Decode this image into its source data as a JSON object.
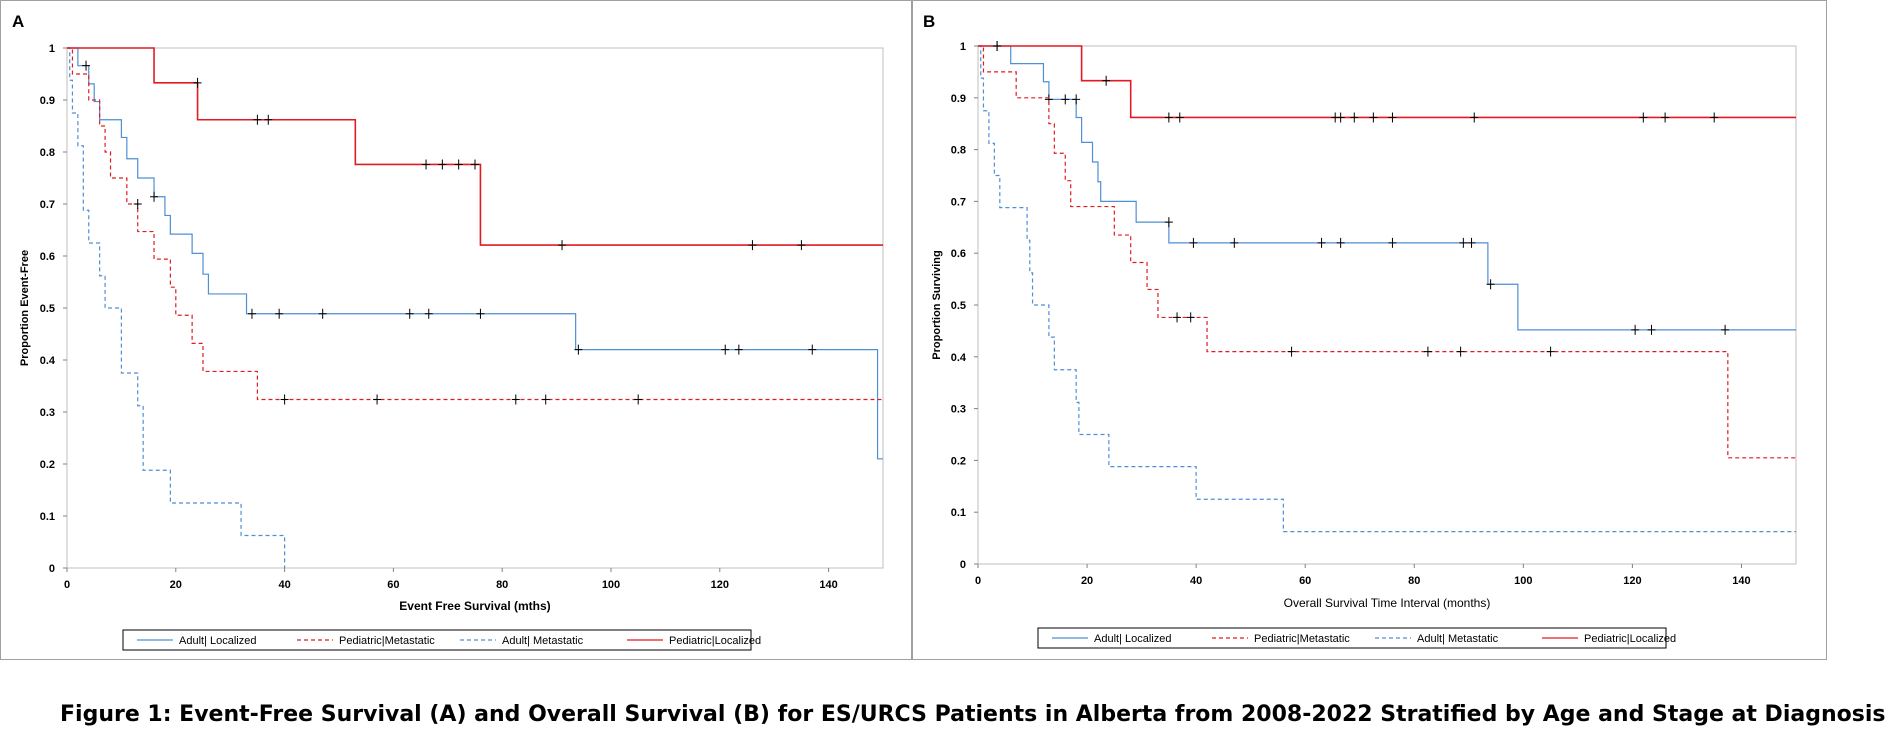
{
  "caption": "Figure 1: Event-Free Survival (A) and Overall Survival (B) for ES/URCS Patients in Alberta from 2008-2022 Stratified by Age and Stage at Diagnosis",
  "colors": {
    "blue": "#4f8fd4",
    "red": "#e11b22",
    "frame": "#a0a0a0"
  },
  "chart_data": [
    {
      "type": "line",
      "panel_label": "A",
      "xlabel": "Event Free Survival (mths)",
      "ylabel": "Proportion Event-Free",
      "xlim": [
        0,
        150
      ],
      "ylim": [
        0,
        1
      ],
      "x_ticks": [
        0,
        20,
        40,
        60,
        80,
        100,
        120,
        140
      ],
      "y_ticks": [
        0,
        0.1,
        0.2,
        0.3,
        0.4,
        0.5,
        0.6,
        0.7,
        0.8,
        0.9,
        1
      ],
      "legend_position": "bottom",
      "series": [
        {
          "name": "Adult| Localized",
          "color": "#4f8fd4",
          "dash": "solid",
          "steps": [
            [
              0,
              1
            ],
            [
              2,
              0.966
            ],
            [
              4,
              0.931
            ],
            [
              5,
              0.897
            ],
            [
              6,
              0.862
            ],
            [
              10,
              0.828
            ],
            [
              11,
              0.787
            ],
            [
              13,
              0.75
            ],
            [
              16,
              0.714
            ],
            [
              18,
              0.678
            ],
            [
              19,
              0.642
            ],
            [
              23,
              0.605
            ],
            [
              25,
              0.565
            ],
            [
              26,
              0.527
            ],
            [
              33,
              0.489
            ],
            [
              93.5,
              0.42
            ],
            [
              149,
              0.21
            ]
          ],
          "censors": [
            [
              3.5,
              0.966
            ],
            [
              16,
              0.714
            ],
            [
              34,
              0.489
            ],
            [
              39,
              0.489
            ],
            [
              47,
              0.489
            ],
            [
              63,
              0.489
            ],
            [
              66.5,
              0.489
            ],
            [
              76,
              0.489
            ],
            [
              94,
              0.42
            ],
            [
              121,
              0.42
            ],
            [
              123.5,
              0.42
            ],
            [
              137,
              0.42
            ]
          ],
          "end_x": 150
        },
        {
          "name": "Pediatric|Metastatic",
          "color": "#e11b22",
          "dash": "dashed",
          "steps": [
            [
              0,
              1
            ],
            [
              1,
              0.95
            ],
            [
              4,
              0.9
            ],
            [
              6,
              0.85
            ],
            [
              7,
              0.8
            ],
            [
              8,
              0.75
            ],
            [
              11,
              0.7
            ],
            [
              13,
              0.647
            ],
            [
              16,
              0.594
            ],
            [
              19,
              0.54
            ],
            [
              20,
              0.486
            ],
            [
              23,
              0.432
            ],
            [
              25,
              0.378
            ],
            [
              35,
              0.324
            ]
          ],
          "censors": [
            [
              13,
              0.7
            ],
            [
              40,
              0.324
            ],
            [
              57,
              0.324
            ],
            [
              82.5,
              0.324
            ],
            [
              88,
              0.324
            ],
            [
              105,
              0.324
            ]
          ],
          "end_x": 150
        },
        {
          "name": "Adult| Metastatic",
          "color": "#4f8fd4",
          "dash": "dashed",
          "steps": [
            [
              0,
              1
            ],
            [
              0.5,
              0.938
            ],
            [
              1,
              0.875
            ],
            [
              2,
              0.812
            ],
            [
              3,
              0.688
            ],
            [
              4,
              0.625
            ],
            [
              6,
              0.562
            ],
            [
              7,
              0.5
            ],
            [
              10,
              0.375
            ],
            [
              13,
              0.312
            ],
            [
              14,
              0.188
            ],
            [
              19,
              0.125
            ],
            [
              32,
              0.0625
            ],
            [
              40,
              0
            ]
          ],
          "censors": [],
          "end_x": 40
        },
        {
          "name": "Pediatric|Localized",
          "color": "#e11b22",
          "dash": "solid",
          "steps": [
            [
              0,
              1
            ],
            [
              16,
              0.933
            ],
            [
              24,
              0.862
            ],
            [
              53,
              0.776
            ],
            [
              76,
              0.621
            ]
          ],
          "censors": [
            [
              24,
              0.933
            ],
            [
              35,
              0.862
            ],
            [
              37,
              0.862
            ],
            [
              66,
              0.776
            ],
            [
              69,
              0.776
            ],
            [
              72,
              0.776
            ],
            [
              75,
              0.776
            ],
            [
              91,
              0.621
            ],
            [
              126,
              0.621
            ],
            [
              135,
              0.621
            ]
          ],
          "end_x": 150
        }
      ]
    },
    {
      "type": "line",
      "panel_label": "B",
      "xlabel": "Overall Survival Time Interval (months)",
      "ylabel": "Proportion Surviving",
      "xlim": [
        0,
        150
      ],
      "ylim": [
        0,
        1
      ],
      "x_ticks": [
        0,
        20,
        40,
        60,
        80,
        100,
        120,
        140
      ],
      "y_ticks": [
        0,
        0.1,
        0.2,
        0.3,
        0.4,
        0.5,
        0.6,
        0.7,
        0.8,
        0.9,
        1
      ],
      "legend_position": "bottom",
      "series": [
        {
          "name": "Adult| Localized",
          "color": "#4f8fd4",
          "dash": "solid",
          "steps": [
            [
              0,
              1
            ],
            [
              6,
              0.966
            ],
            [
              12,
              0.931
            ],
            [
              13,
              0.897
            ],
            [
              18,
              0.862
            ],
            [
              19,
              0.814
            ],
            [
              21,
              0.776
            ],
            [
              22,
              0.738
            ],
            [
              22.5,
              0.7
            ],
            [
              29,
              0.66
            ],
            [
              35,
              0.62
            ],
            [
              93.5,
              0.54
            ],
            [
              99,
              0.452
            ]
          ],
          "censors": [
            [
              3.5,
              1
            ],
            [
              13,
              0.897
            ],
            [
              16,
              0.897
            ],
            [
              18,
              0.897
            ],
            [
              35,
              0.66
            ],
            [
              39.5,
              0.62
            ],
            [
              47,
              0.62
            ],
            [
              63,
              0.62
            ],
            [
              66.5,
              0.62
            ],
            [
              76,
              0.62
            ],
            [
              89,
              0.62
            ],
            [
              90.5,
              0.62
            ],
            [
              94,
              0.54
            ],
            [
              120.5,
              0.452
            ],
            [
              123.5,
              0.452
            ],
            [
              137,
              0.452
            ]
          ],
          "end_x": 150
        },
        {
          "name": "Pediatric|Metastatic",
          "color": "#e11b22",
          "dash": "dashed",
          "steps": [
            [
              0,
              1
            ],
            [
              1,
              0.95
            ],
            [
              7,
              0.9
            ],
            [
              13,
              0.85
            ],
            [
              14,
              0.793
            ],
            [
              16,
              0.74
            ],
            [
              17,
              0.69
            ],
            [
              25,
              0.635
            ],
            [
              28,
              0.582
            ],
            [
              31,
              0.53
            ],
            [
              33,
              0.476
            ],
            [
              42,
              0.41
            ],
            [
              137.5,
              0.205
            ]
          ],
          "censors": [
            [
              36.5,
              0.476
            ],
            [
              39,
              0.476
            ],
            [
              57.5,
              0.41
            ],
            [
              82.5,
              0.41
            ],
            [
              88.5,
              0.41
            ],
            [
              105,
              0.41
            ]
          ],
          "end_x": 150
        },
        {
          "name": "Adult| Metastatic",
          "color": "#4f8fd4",
          "dash": "dashed",
          "steps": [
            [
              0,
              1
            ],
            [
              0.5,
              0.938
            ],
            [
              1,
              0.875
            ],
            [
              2,
              0.812
            ],
            [
              3,
              0.75
            ],
            [
              4,
              0.688
            ],
            [
              9,
              0.625
            ],
            [
              9.5,
              0.562
            ],
            [
              10,
              0.5
            ],
            [
              13,
              0.438
            ],
            [
              14,
              0.375
            ],
            [
              18,
              0.312
            ],
            [
              18.5,
              0.25
            ],
            [
              24,
              0.188
            ],
            [
              40,
              0.125
            ],
            [
              56,
              0.0625
            ]
          ],
          "censors": [],
          "end_x": 150
        },
        {
          "name": "Pediatric|Localized",
          "color": "#e11b22",
          "dash": "solid",
          "steps": [
            [
              0,
              1
            ],
            [
              19,
              0.933
            ],
            [
              28,
              0.862
            ]
          ],
          "censors": [
            [
              3.5,
              1
            ],
            [
              23.5,
              0.933
            ],
            [
              35,
              0.862
            ],
            [
              37,
              0.862
            ],
            [
              65.5,
              0.862
            ],
            [
              66.5,
              0.862
            ],
            [
              69,
              0.862
            ],
            [
              72.5,
              0.862
            ],
            [
              76,
              0.862
            ],
            [
              91,
              0.862
            ],
            [
              122,
              0.862
            ],
            [
              126,
              0.862
            ],
            [
              135,
              0.862
            ]
          ],
          "end_x": 150
        }
      ]
    }
  ]
}
